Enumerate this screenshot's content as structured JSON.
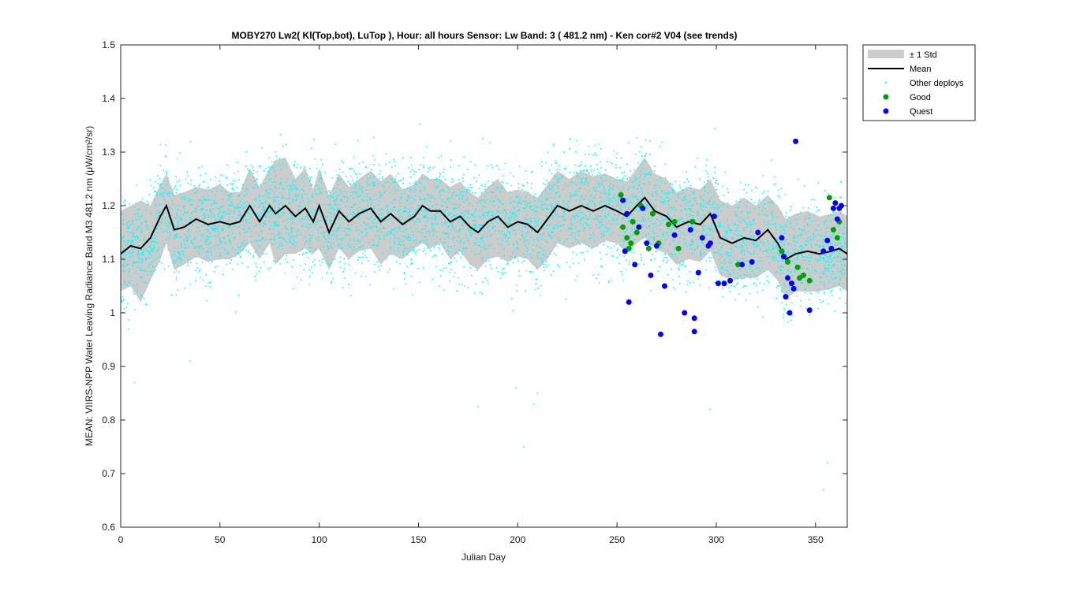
{
  "chart_data": {
    "type": "scatter",
    "title": "MOBY270   Lw2( Kl(Top,bot), LuTop ),   Hour: all hours  Sensor: Lw Band: 3 ( 481.2 nm)  - Ken cor#2 V04 (see trends)",
    "xlabel": "Julian Day",
    "ylabel": "MEAN: VIIRS-NPP Water Leaving Radiance Band M3 481.2 nm (μW/cm²/sr)",
    "xlim": [
      0,
      366
    ],
    "ylim": [
      0.6,
      1.5
    ],
    "xticks": [
      0,
      50,
      100,
      150,
      200,
      250,
      300,
      350
    ],
    "yticks": [
      0.6,
      0.7,
      0.8,
      0.9,
      1,
      1.1,
      1.2,
      1.3,
      1.4,
      1.5
    ],
    "grid": false,
    "legend_placement": "outside-top-right",
    "legend": [
      "± 1 Std",
      "Mean",
      "Other deploys",
      "Good",
      "Quest"
    ],
    "colors": {
      "std_band": "#cccccc",
      "mean": "#000000",
      "other": "#00ffff",
      "good": "#00a000",
      "quest": "#0000ff"
    },
    "series": [
      {
        "name": "Mean",
        "x": [
          0,
          5,
          10,
          15,
          20,
          23,
          27,
          32,
          38,
          44,
          50,
          55,
          60,
          65,
          70,
          75,
          78,
          83,
          88,
          93,
          97,
          100,
          105,
          110,
          115,
          120,
          126,
          131,
          136,
          142,
          148,
          152,
          156,
          161,
          166,
          171,
          176,
          180,
          185,
          190,
          195,
          200,
          205,
          210,
          215,
          220,
          226,
          232,
          238,
          244,
          250,
          255,
          260,
          264,
          269,
          275,
          280,
          286,
          292,
          297,
          302,
          308,
          314,
          320,
          326,
          331,
          335,
          340,
          346,
          352,
          358,
          362,
          366
        ],
        "y": [
          1.11,
          1.125,
          1.12,
          1.14,
          1.18,
          1.2,
          1.155,
          1.16,
          1.175,
          1.165,
          1.17,
          1.165,
          1.17,
          1.2,
          1.17,
          1.2,
          1.185,
          1.2,
          1.18,
          1.195,
          1.17,
          1.2,
          1.15,
          1.19,
          1.17,
          1.185,
          1.195,
          1.17,
          1.185,
          1.165,
          1.18,
          1.2,
          1.19,
          1.19,
          1.17,
          1.18,
          1.16,
          1.15,
          1.17,
          1.18,
          1.16,
          1.17,
          1.165,
          1.15,
          1.175,
          1.2,
          1.19,
          1.2,
          1.19,
          1.2,
          1.19,
          1.18,
          1.2,
          1.215,
          1.19,
          1.18,
          1.16,
          1.17,
          1.165,
          1.185,
          1.14,
          1.13,
          1.14,
          1.135,
          1.155,
          1.13,
          1.1,
          1.11,
          1.115,
          1.11,
          1.115,
          1.12,
          1.11
        ]
      },
      {
        "name": "± 1 Std",
        "x": [
          0,
          5,
          10,
          15,
          20,
          23,
          27,
          32,
          38,
          44,
          50,
          55,
          60,
          65,
          70,
          75,
          78,
          83,
          88,
          93,
          97,
          100,
          105,
          110,
          115,
          120,
          126,
          131,
          136,
          142,
          148,
          152,
          156,
          161,
          166,
          171,
          176,
          180,
          185,
          190,
          195,
          200,
          205,
          210,
          215,
          220,
          226,
          232,
          238,
          244,
          250,
          255,
          260,
          264,
          269,
          275,
          280,
          286,
          292,
          297,
          302,
          308,
          314,
          320,
          326,
          331,
          335,
          340,
          346,
          352,
          358,
          362,
          366
        ],
        "upper": [
          1.19,
          1.2,
          1.21,
          1.2,
          1.24,
          1.26,
          1.22,
          1.225,
          1.235,
          1.23,
          1.24,
          1.225,
          1.225,
          1.27,
          1.235,
          1.27,
          1.285,
          1.29,
          1.25,
          1.27,
          1.23,
          1.27,
          1.22,
          1.26,
          1.235,
          1.25,
          1.265,
          1.245,
          1.26,
          1.23,
          1.24,
          1.26,
          1.25,
          1.25,
          1.235,
          1.245,
          1.225,
          1.215,
          1.235,
          1.25,
          1.225,
          1.23,
          1.225,
          1.215,
          1.24,
          1.265,
          1.25,
          1.265,
          1.255,
          1.26,
          1.25,
          1.245,
          1.27,
          1.29,
          1.26,
          1.25,
          1.225,
          1.235,
          1.23,
          1.25,
          1.21,
          1.2,
          1.215,
          1.2,
          1.22,
          1.2,
          1.175,
          1.185,
          1.19,
          1.18,
          1.185,
          1.19,
          1.18
        ],
        "lower": [
          1.04,
          1.05,
          1.02,
          1.06,
          1.1,
          1.13,
          1.08,
          1.09,
          1.105,
          1.095,
          1.1,
          1.1,
          1.11,
          1.13,
          1.1,
          1.13,
          1.09,
          1.11,
          1.11,
          1.12,
          1.11,
          1.12,
          1.08,
          1.12,
          1.1,
          1.115,
          1.12,
          1.09,
          1.11,
          1.1,
          1.12,
          1.13,
          1.12,
          1.13,
          1.1,
          1.115,
          1.09,
          1.08,
          1.1,
          1.105,
          1.095,
          1.105,
          1.1,
          1.08,
          1.1,
          1.13,
          1.12,
          1.13,
          1.12,
          1.135,
          1.13,
          1.11,
          1.13,
          1.14,
          1.12,
          1.11,
          1.09,
          1.1,
          1.095,
          1.115,
          1.07,
          1.06,
          1.065,
          1.065,
          1.08,
          1.06,
          1.025,
          1.04,
          1.04,
          1.04,
          1.045,
          1.05,
          1.04
        ]
      },
      {
        "name": "Good",
        "x": [
          252,
          253,
          255,
          256,
          257,
          258,
          260,
          262,
          266,
          268,
          271,
          276,
          279,
          281,
          288,
          311,
          333,
          336,
          338,
          341,
          342,
          344,
          347,
          357,
          359,
          361,
          362
        ],
        "y": [
          1.22,
          1.16,
          1.14,
          1.12,
          1.13,
          1.17,
          1.15,
          1.2,
          1.12,
          1.185,
          1.13,
          1.165,
          1.17,
          1.12,
          1.17,
          1.09,
          1.115,
          1.095,
          1.055,
          1.085,
          1.065,
          1.07,
          1.06,
          1.215,
          1.155,
          1.14,
          1.17
        ]
      },
      {
        "name": "Quest",
        "x": [
          253,
          254,
          255,
          256,
          259,
          261,
          263,
          265,
          267,
          270,
          272,
          274,
          279,
          284,
          287,
          289,
          289,
          291,
          293,
          296,
          297,
          299,
          301,
          304,
          307,
          313,
          318,
          321,
          333,
          334,
          335,
          336,
          337,
          338,
          339,
          340,
          347,
          354,
          356,
          358,
          359,
          360,
          361,
          362,
          363
        ],
        "y": [
          1.21,
          1.115,
          1.185,
          1.02,
          1.09,
          1.16,
          1.195,
          1.13,
          1.07,
          1.125,
          0.96,
          1.05,
          1.145,
          1.0,
          1.155,
          0.99,
          0.965,
          1.075,
          1.14,
          1.125,
          1.13,
          1.18,
          1.055,
          1.055,
          1.06,
          1.09,
          1.095,
          1.15,
          1.14,
          1.105,
          1.03,
          1.065,
          1.0,
          1.055,
          1.045,
          1.32,
          1.005,
          1.115,
          1.135,
          1.12,
          1.195,
          1.205,
          1.175,
          1.195,
          1.2
        ]
      }
    ],
    "other_deploys": {
      "description_free": true,
      "count": 5000,
      "x_range": [
        0,
        366
      ],
      "spread_std": 0.07,
      "outliers": [
        [
          7,
          0.87
        ],
        [
          35,
          0.91
        ],
        [
          180,
          0.825
        ],
        [
          199,
          0.86
        ],
        [
          208,
          0.83
        ],
        [
          210,
          0.85
        ],
        [
          203,
          0.75
        ],
        [
          297,
          0.82
        ],
        [
          356,
          0.72
        ],
        [
          354,
          0.67
        ]
      ]
    }
  }
}
